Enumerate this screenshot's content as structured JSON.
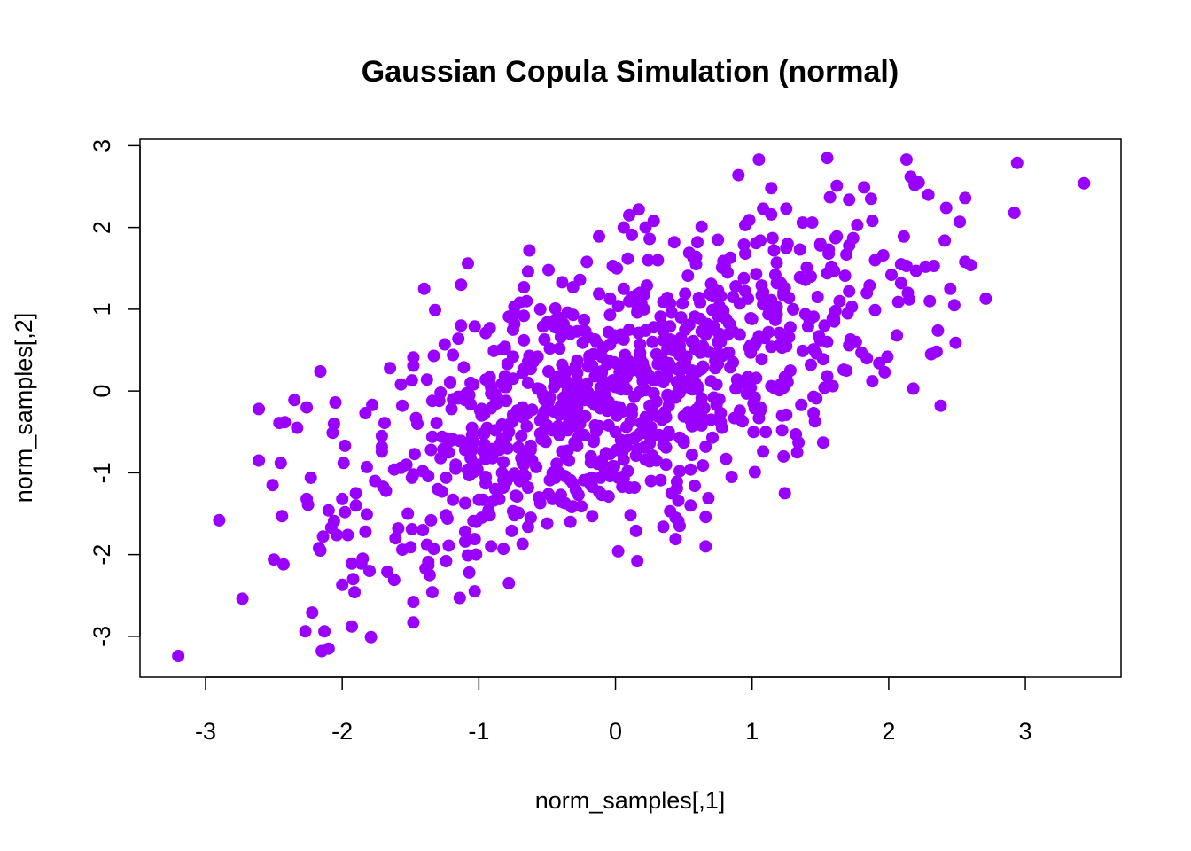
{
  "chart_data": {
    "type": "scatter",
    "title": "Gaussian Copula Simulation (normal)",
    "xlabel": "norm_samples[,1]",
    "ylabel": "norm_samples[,2]",
    "xlim": [
      -3.48,
      3.7
    ],
    "ylim": [
      -3.5,
      3.08
    ],
    "xticks": [
      -3,
      -2,
      -1,
      0,
      1,
      2,
      3
    ],
    "xtick_labels": [
      "-3",
      "-2",
      "-1",
      "0",
      "1",
      "2",
      "3"
    ],
    "yticks": [
      -3,
      -2,
      -1,
      0,
      1,
      2,
      3
    ],
    "ytick_labels": [
      "-3",
      "-2",
      "-1",
      "0",
      "1",
      "2",
      "3"
    ],
    "grid": false,
    "marker_color": "#9900ff",
    "series": [
      {
        "n_points": 1000,
        "correlation": 0.6,
        "points": [
          [
            -3.2,
            -3.24
          ],
          [
            3.43,
            2.54
          ],
          [
            -2.9,
            -1.58
          ],
          [
            -2.73,
            -2.54
          ],
          [
            -2.5,
            -2.06
          ],
          [
            -2.44,
            -1.53
          ],
          [
            -2.45,
            -0.88
          ],
          [
            -2.42,
            -0.38
          ],
          [
            -2.35,
            -0.11
          ],
          [
            -2.33,
            -0.45
          ],
          [
            -2.26,
            -0.2
          ],
          [
            -2.26,
            -1.32
          ],
          [
            -2.23,
            -1.06
          ],
          [
            -2.16,
            -1.95
          ],
          [
            -2.14,
            -1.78
          ],
          [
            -2.1,
            -1.46
          ],
          [
            -2.1,
            -3.15
          ],
          [
            -2.07,
            -0.51
          ],
          [
            -2.06,
            -1.59
          ],
          [
            -2.04,
            -1.76
          ],
          [
            -2.0,
            -2.37
          ],
          [
            -1.98,
            -1.48
          ],
          [
            -1.96,
            -1.76
          ],
          [
            -1.92,
            -2.3
          ],
          [
            -1.91,
            -2.46
          ],
          [
            -1.9,
            -1.4
          ],
          [
            -1.86,
            -2.11
          ],
          [
            -1.85,
            -2.05
          ],
          [
            -1.83,
            -1.72
          ],
          [
            -1.82,
            -1.51
          ],
          [
            -1.82,
            -0.93
          ],
          [
            -1.78,
            -0.17
          ],
          [
            -1.71,
            -0.68
          ],
          [
            -1.7,
            -1.17
          ],
          [
            -1.67,
            -2.21
          ],
          [
            -1.62,
            -2.31
          ],
          [
            -1.59,
            -1.68
          ],
          [
            -1.57,
            -0.94
          ],
          [
            -1.56,
            -0.18
          ],
          [
            -1.52,
            -1.5
          ],
          [
            -1.49,
            -1.69
          ],
          [
            -1.48,
            -2.58
          ],
          [
            -1.48,
            -2.83
          ],
          [
            -1.45,
            -0.4
          ],
          [
            -1.41,
            -0.98
          ],
          [
            -1.38,
            -1.88
          ],
          [
            -1.36,
            -2.25
          ],
          [
            -1.34,
            -0.12
          ],
          [
            -1.3,
            -1.2
          ],
          [
            -1.28,
            -0.02
          ],
          [
            -1.24,
            -1.52
          ],
          [
            -1.22,
            -0.75
          ],
          [
            -1.21,
            0.1
          ],
          [
            -1.19,
            -1.33
          ],
          [
            -1.17,
            -0.9
          ],
          [
            -1.15,
            0.64
          ],
          [
            -1.14,
            -2.53
          ],
          [
            -1.13,
            1.3
          ],
          [
            -1.11,
            0.29
          ],
          [
            -1.1,
            -1.72
          ],
          [
            -1.08,
            -2.01
          ],
          [
            -1.05,
            -0.66
          ],
          [
            -1.04,
            -0.99
          ],
          [
            -1.02,
            -2.0
          ],
          [
            -1.0,
            -1.33
          ],
          [
            -0.98,
            -0.3
          ],
          [
            -0.97,
            -0.52
          ],
          [
            -0.95,
            -1.13
          ],
          [
            -0.93,
            -1.46
          ],
          [
            -0.92,
            0.09
          ],
          [
            -0.9,
            -0.82
          ],
          [
            -0.87,
            -0.15
          ],
          [
            -0.85,
            -1.32
          ],
          [
            -0.83,
            -1.0
          ],
          [
            -0.8,
            -0.57
          ],
          [
            -0.78,
            -2.35
          ],
          [
            -0.76,
            -1.71
          ],
          [
            -0.75,
            0.75
          ],
          [
            -0.72,
            -0.24
          ],
          [
            -0.7,
            -1.1
          ],
          [
            -0.68,
            -1.87
          ],
          [
            -0.65,
            -0.74
          ],
          [
            -0.64,
            0.1
          ],
          [
            -0.62,
            -1.55
          ],
          [
            -0.6,
            0.36
          ],
          [
            -0.58,
            -0.93
          ],
          [
            -0.56,
            -1.3
          ],
          [
            -0.55,
            1.0
          ],
          [
            -0.53,
            -0.3
          ],
          [
            -0.51,
            -0.62
          ],
          [
            -0.5,
            -1.62
          ],
          [
            -0.48,
            0.52
          ],
          [
            -0.46,
            -1.0
          ],
          [
            -0.44,
            0.14
          ],
          [
            -0.42,
            -0.43
          ],
          [
            -0.4,
            -1.27
          ],
          [
            -0.38,
            0.82
          ],
          [
            -0.36,
            -0.16
          ],
          [
            -0.35,
            -0.73
          ],
          [
            -0.33,
            -1.09
          ],
          [
            -0.31,
            1.27
          ],
          [
            -0.29,
            0.31
          ],
          [
            -0.27,
            -0.56
          ],
          [
            -0.25,
            -1.41
          ],
          [
            -0.24,
            0.05
          ],
          [
            -0.22,
            -0.31
          ],
          [
            -0.2,
            0.66
          ],
          [
            -0.18,
            -0.87
          ],
          [
            -0.17,
            -1.53
          ],
          [
            -0.15,
            0.18
          ],
          [
            -0.13,
            -0.45
          ],
          [
            -0.12,
            1.89
          ],
          [
            -0.1,
            0.42
          ],
          [
            -0.09,
            -0.14
          ],
          [
            -0.07,
            -0.76
          ],
          [
            -0.05,
            -1.29
          ],
          [
            -0.04,
            0.93
          ],
          [
            -0.02,
            0.13
          ],
          [
            0.0,
            -0.5
          ],
          [
            0.01,
            1.5
          ],
          [
            0.02,
            -1.06
          ],
          [
            0.04,
            0.69
          ],
          [
            0.05,
            -0.25
          ],
          [
            0.06,
            2.0
          ],
          [
            0.08,
            -0.68
          ],
          [
            0.1,
            0.36
          ],
          [
            0.11,
            -1.52
          ],
          [
            0.12,
            1.15
          ],
          [
            0.14,
            -0.07
          ],
          [
            0.15,
            -1.71
          ],
          [
            0.16,
            -2.08
          ],
          [
            0.18,
            0.57
          ],
          [
            0.19,
            -0.39
          ],
          [
            0.21,
            1.0
          ],
          [
            0.22,
            -0.84
          ],
          [
            0.24,
            0.2
          ],
          [
            0.25,
            1.86
          ],
          [
            0.26,
            -0.57
          ],
          [
            0.28,
            0.78
          ],
          [
            0.3,
            -0.13
          ],
          [
            0.31,
            1.6
          ],
          [
            0.33,
            -1.09
          ],
          [
            0.34,
            0.39
          ],
          [
            0.36,
            -0.26
          ],
          [
            0.38,
            1.14
          ],
          [
            0.39,
            -0.5
          ],
          [
            0.41,
            0.62
          ],
          [
            0.43,
            1.82
          ],
          [
            0.45,
            -0.05
          ],
          [
            0.46,
            -1.59
          ],
          [
            0.48,
            0.9
          ],
          [
            0.5,
            -0.31
          ],
          [
            0.51,
            0.35
          ],
          [
            0.53,
            1.41
          ],
          [
            0.55,
            -1.4
          ],
          [
            0.56,
            -0.78
          ],
          [
            0.58,
            0.52
          ],
          [
            0.6,
            0.06
          ],
          [
            0.62,
            1.08
          ],
          [
            0.63,
            2.01
          ],
          [
            0.65,
            -0.21
          ],
          [
            0.66,
            0.77
          ],
          [
            0.68,
            -1.31
          ],
          [
            0.7,
            1.31
          ],
          [
            0.71,
            -0.57
          ],
          [
            0.73,
            0.28
          ],
          [
            0.75,
            1.85
          ],
          [
            0.76,
            -0.1
          ],
          [
            0.78,
            0.97
          ],
          [
            0.79,
            1.59
          ],
          [
            0.81,
            -0.83
          ],
          [
            0.83,
            0.47
          ],
          [
            0.85,
            -1.05
          ],
          [
            0.86,
            1.15
          ],
          [
            0.88,
            0.03
          ],
          [
            0.9,
            2.64
          ],
          [
            0.91,
            0.69
          ],
          [
            0.93,
            -0.37
          ],
          [
            0.95,
            1.68
          ],
          [
            0.97,
            0.17
          ],
          [
            0.98,
            2.09
          ],
          [
            1.0,
            0.88
          ],
          [
            1.02,
            -0.21
          ],
          [
            1.03,
            1.43
          ],
          [
            1.05,
            2.83
          ],
          [
            1.07,
            0.39
          ],
          [
            1.08,
            1.21
          ],
          [
            1.1,
            -0.5
          ],
          [
            1.12,
            0.94
          ],
          [
            1.14,
            2.16
          ],
          [
            1.16,
            0.04
          ],
          [
            1.18,
            1.57
          ],
          [
            1.2,
            0.71
          ],
          [
            1.22,
            -0.48
          ],
          [
            1.24,
            1.26
          ],
          [
            1.26,
            1.8
          ],
          [
            1.28,
            0.25
          ],
          [
            1.3,
            1.0
          ],
          [
            1.32,
            -0.53
          ],
          [
            1.35,
            1.73
          ],
          [
            1.37,
            0.49
          ],
          [
            1.39,
            1.36
          ],
          [
            1.42,
            0.87
          ],
          [
            1.44,
            2.06
          ],
          [
            1.46,
            -0.37
          ],
          [
            1.48,
            1.15
          ],
          [
            1.5,
            1.78
          ],
          [
            1.52,
            0.39
          ],
          [
            1.55,
            1.44
          ],
          [
            1.57,
            2.37
          ],
          [
            1.6,
            0.88
          ],
          [
            1.62,
            2.51
          ],
          [
            1.64,
            1.1
          ],
          [
            1.67,
            0.26
          ],
          [
            1.69,
            1.67
          ],
          [
            1.72,
            0.63
          ],
          [
            1.74,
            1.87
          ],
          [
            1.77,
            2.03
          ],
          [
            1.8,
            0.47
          ],
          [
            1.82,
            2.49
          ],
          [
            1.84,
            1.2
          ],
          [
            1.87,
            2.35
          ],
          [
            1.9,
            0.99
          ],
          [
            1.93,
            0.34
          ],
          [
            1.96,
            1.66
          ],
          [
            1.99,
            0.42
          ],
          [
            2.02,
            1.42
          ],
          [
            2.06,
            0.68
          ],
          [
            2.09,
            1.32
          ],
          [
            2.11,
            1.89
          ],
          [
            2.13,
            2.83
          ],
          [
            2.16,
            2.62
          ],
          [
            2.18,
            0.03
          ],
          [
            2.2,
            1.47
          ],
          [
            2.22,
            2.55
          ],
          [
            2.3,
            1.1
          ],
          [
            2.35,
            0.48
          ],
          [
            2.42,
            2.24
          ],
          [
            2.45,
            1.25
          ],
          [
            2.48,
            1.05
          ],
          [
            2.52,
            2.07
          ],
          [
            2.56,
            2.36
          ],
          [
            2.6,
            1.54
          ],
          [
            2.71,
            1.13
          ],
          [
            1.45,
            -0.07
          ],
          [
            1.25,
            0.55
          ],
          [
            0.94,
            0.1
          ],
          [
            0.72,
            -0.08
          ],
          [
            0.52,
            0.05
          ],
          [
            0.32,
            0.18
          ],
          [
            0.12,
            -0.22
          ],
          [
            -0.08,
            0.02
          ],
          [
            -0.28,
            -0.2
          ],
          [
            -0.48,
            -0.08
          ],
          [
            -0.68,
            -0.32
          ],
          [
            -0.88,
            -0.48
          ],
          [
            -1.08,
            -0.64
          ],
          [
            -1.28,
            -0.82
          ],
          [
            -1.48,
            -1.02
          ],
          [
            -1.68,
            -1.22
          ],
          [
            -0.2,
            -0.05
          ],
          [
            -0.1,
            0.22
          ],
          [
            0.0,
            0.05
          ],
          [
            0.1,
            0.3
          ],
          [
            0.2,
            0.12
          ],
          [
            0.3,
            0.45
          ],
          [
            0.4,
            0.28
          ],
          [
            -0.3,
            -0.35
          ],
          [
            -0.4,
            -0.18
          ],
          [
            -0.5,
            -0.42
          ]
        ]
      }
    ]
  }
}
